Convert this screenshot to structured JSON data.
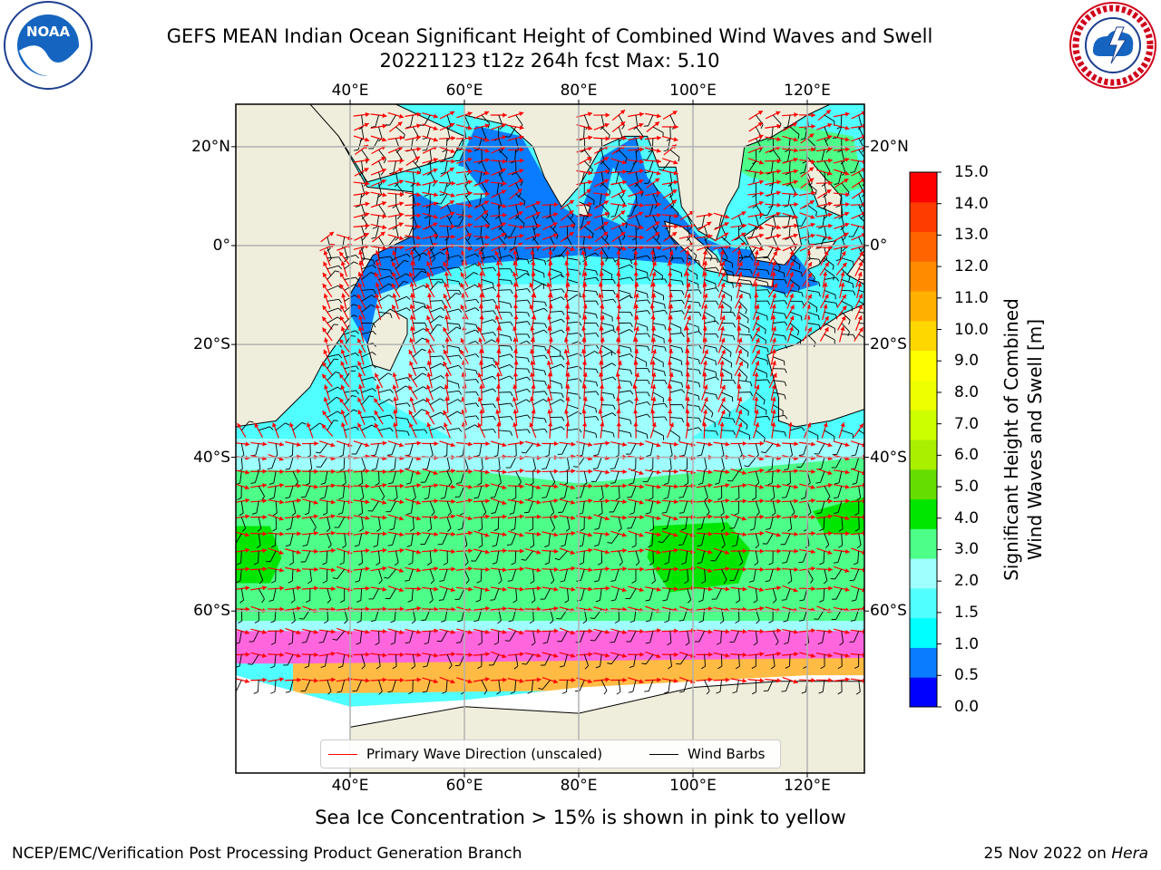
{
  "title_line1": "GEFS MEAN Indian Ocean Significant Height of Combined Wind Waves and Swell",
  "title_line2": "20221123 t12z 264h fcst   Max: 5.10",
  "map": {
    "lon_ticks": [
      "40°E",
      "60°E",
      "80°E",
      "100°E",
      "120°E"
    ],
    "lat_ticks": [
      "20°N",
      "0°",
      "20°S",
      "40°S",
      "60°S"
    ],
    "lon_values": [
      40,
      60,
      80,
      100,
      120
    ],
    "lat_values": [
      20,
      0,
      -20,
      -40,
      -60
    ],
    "extent": {
      "lon_min": 20,
      "lon_max": 130,
      "lat_max": 28,
      "lat_min": -73
    },
    "colors": {
      "land": "#efeedc",
      "ocean_low": "#0a7cff",
      "ocean_mid": "#50ffff",
      "ocean_high": "#9fffff",
      "band": "#4dff88",
      "band_peak": "#00e600",
      "ice_pink": "#ff66dd",
      "ice_orange": "#ffbb44",
      "ice_white": "#ffffff",
      "arrow": "#ff0000",
      "barb": "#000000"
    }
  },
  "colorbar": {
    "ticks": [
      "15.0",
      "14.0",
      "13.0",
      "12.0",
      "11.0",
      "10.0",
      "9.0",
      "8.0",
      "7.0",
      "6.0",
      "5.0",
      "4.0",
      "3.0",
      "2.0",
      "1.5",
      "1.0",
      "0.5",
      "0.0"
    ],
    "colors": [
      "#0000ff",
      "#0a7cff",
      "#00ffff",
      "#50ffff",
      "#9fffff",
      "#4dff88",
      "#00e600",
      "#66dd00",
      "#aaee00",
      "#ccff00",
      "#eeff00",
      "#ffff00",
      "#ffd700",
      "#ffb000",
      "#ff8c00",
      "#ff6400",
      "#ff3c00",
      "#ff0000"
    ],
    "label_line1": "Significant Height of Combined",
    "label_line2": "Wind Waves and Swell [m]"
  },
  "legend": {
    "wave_label": "Primary Wave Direction (unscaled)",
    "barb_label": "Wind Barbs"
  },
  "caption": "Sea Ice Concentration > 15% is shown in pink to yellow",
  "footer": {
    "left": "NCEP/EMC/Verification Post Processing Product Generation Branch",
    "right_prefix": "25 Nov 2022 on ",
    "right_host": "Hera"
  },
  "logos": {
    "noaa_text": "NOAA",
    "nws_text": "NATIONAL WEATHER SERVICE"
  }
}
